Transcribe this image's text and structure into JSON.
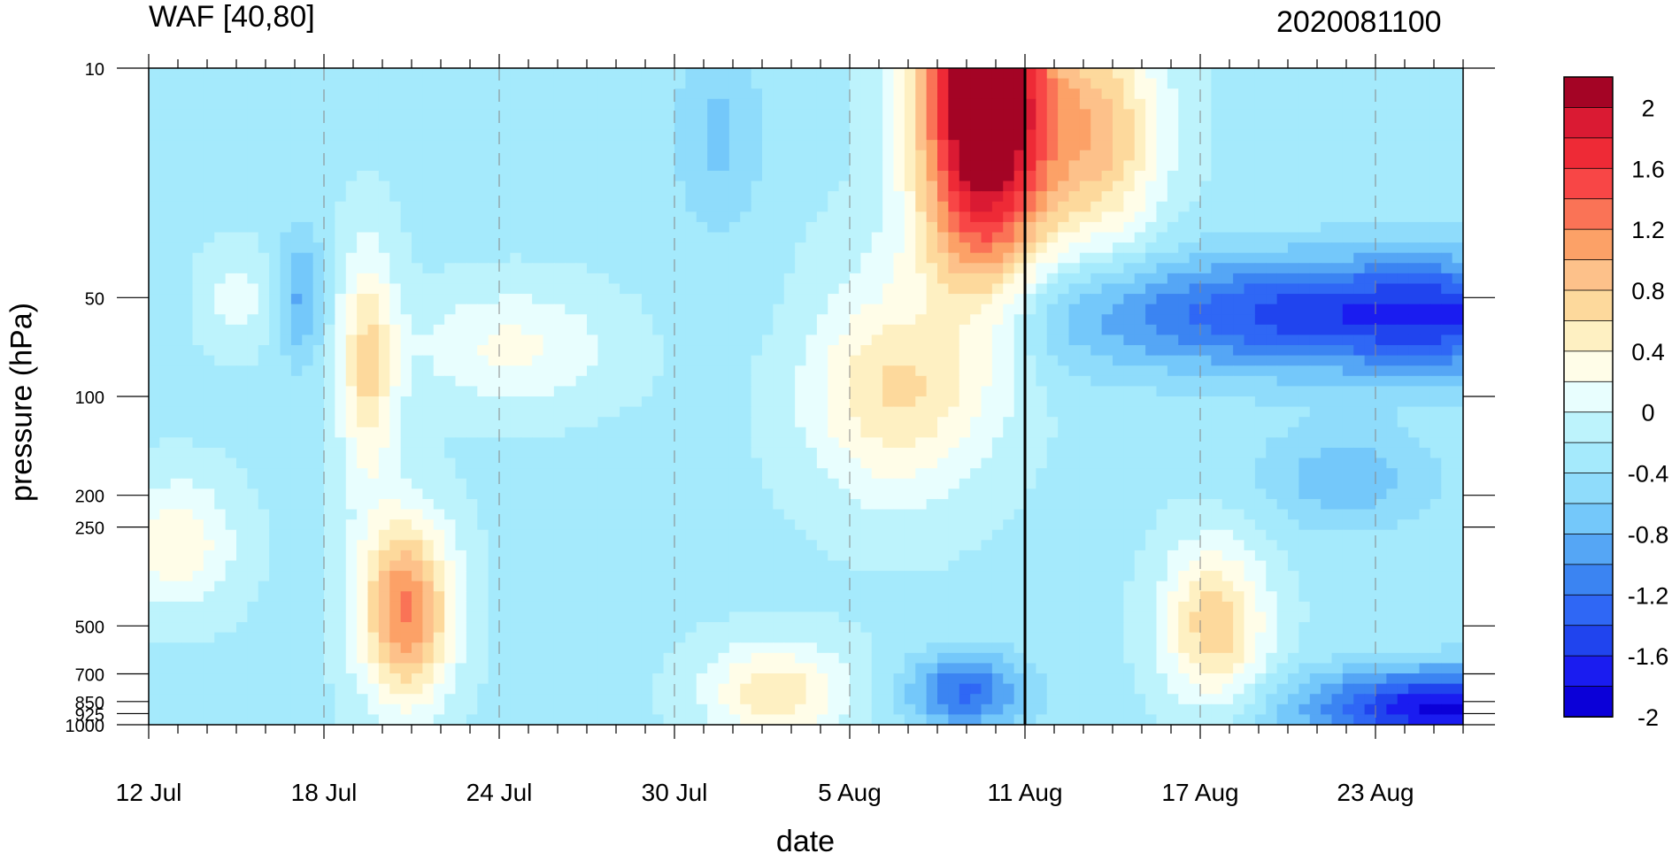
{
  "chart_data": {
    "type": "heatmap",
    "title_left": "WAF [40,80]",
    "title_right": "2020081100",
    "xlabel": "date",
    "ylabel": "pressure (hPa)",
    "x_ticks": [
      "12 Jul",
      "18 Jul",
      "24 Jul",
      "30 Jul",
      "5 Aug",
      "11 Aug",
      "17 Aug",
      "23 Aug"
    ],
    "y_ticks": [
      "10",
      "50",
      "100",
      "200",
      "250",
      "500",
      "700",
      "850",
      "925",
      "1000"
    ],
    "y_scale": "log",
    "ylim": [
      1000,
      10
    ],
    "x_range": [
      "12 Jul",
      "27 Aug"
    ],
    "marker_date": "11 Aug",
    "colorbar": {
      "labels": [
        "2",
        "1.6",
        "1.2",
        "0.8",
        "0.4",
        "0",
        "-0.4",
        "-0.8",
        "-1.2",
        "-1.6",
        "-2"
      ],
      "levels": [
        -2.2,
        -2.0,
        -1.8,
        -1.6,
        -1.4,
        -1.2,
        -1.0,
        -0.8,
        -0.6,
        -0.4,
        -0.2,
        0.0,
        0.2,
        0.4,
        0.6,
        0.8,
        1.0,
        1.2,
        1.4,
        1.6,
        1.8,
        2.0,
        2.2
      ],
      "colors": [
        "#0b00d8",
        "#1a1cf0",
        "#2044ee",
        "#2f67f5",
        "#3b84f2",
        "#55a6f5",
        "#74c8fa",
        "#8fdcfb",
        "#a5eafc",
        "#bdf3fc",
        "#e8fefe",
        "#fffde8",
        "#fef0c2",
        "#fdd99c",
        "#fdc18a",
        "#fca167",
        "#fa7356",
        "#f84646",
        "#ee2a36",
        "#da1a33",
        "#a40425"
      ]
    },
    "grid": "dashed at labeled dates"
  }
}
